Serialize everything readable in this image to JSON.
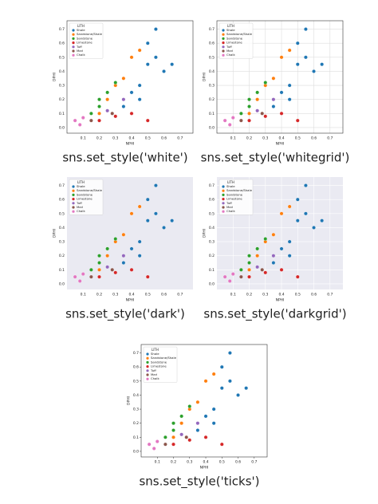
{
  "chart_data": [
    {
      "type": "scatter",
      "caption": "sns.set_style('white')",
      "x_label": "NPHI",
      "y_label": "DPHI",
      "legend_title": "LITH",
      "legend": "upper left",
      "grid": false,
      "background": "#ffffff",
      "spines": true,
      "tick_marks": false,
      "xlim": [
        0,
        0.78
      ],
      "ylim": [
        -0.04,
        0.76
      ],
      "xticks": [
        0.1,
        0.2,
        0.3,
        0.4,
        0.5,
        0.6,
        0.7
      ],
      "yticks": [
        {
          "value": 0,
          "label": "0.0"
        },
        0.1,
        0.2,
        0.3,
        0.4,
        0.5,
        0.6,
        0.7
      ],
      "series": [
        {
          "name": "Shale",
          "color": "#1f77b4",
          "x": [
            0.35,
            0.4,
            0.45,
            0.5,
            0.55,
            0.6,
            0.5,
            0.55,
            0.65,
            0.45
          ],
          "values": [
            0.15,
            0.25,
            0.3,
            0.45,
            0.5,
            0.4,
            0.6,
            0.7,
            0.45,
            0.2
          ]
        },
        {
          "name": "Sandstone/Shale",
          "color": "#ff7f0e",
          "x": [
            0.2,
            0.25,
            0.3,
            0.35,
            0.4,
            0.45
          ],
          "values": [
            0.1,
            0.2,
            0.3,
            0.35,
            0.5,
            0.55
          ]
        },
        {
          "name": "Sandstone",
          "color": "#2ca02c",
          "x": [
            0.15,
            0.2,
            0.25,
            0.3,
            0.2
          ],
          "values": [
            0.1,
            0.2,
            0.25,
            0.32,
            0.15
          ]
        },
        {
          "name": "Limestone",
          "color": "#d62728",
          "x": [
            0.2,
            0.3,
            0.4,
            0.5
          ],
          "values": [
            0.05,
            0.08,
            0.1,
            0.05
          ]
        },
        {
          "name": "Tuff",
          "color": "#9467bd",
          "x": [
            0.25,
            0.35
          ],
          "values": [
            0.12,
            0.2
          ]
        },
        {
          "name": "Marl",
          "color": "#8c564b",
          "x": [
            0.15,
            0.28
          ],
          "values": [
            0.05,
            0.1
          ]
        },
        {
          "name": "Chalk",
          "color": "#e377c2",
          "x": [
            0.05,
            0.08,
            0.1
          ],
          "values": [
            0.05,
            0.02,
            0.07
          ]
        }
      ]
    },
    {
      "type": "scatter",
      "caption": "sns.set_style('whitegrid')",
      "x_label": "NPHI",
      "y_label": "DPHI",
      "legend_title": "LITH",
      "legend": "upper left",
      "grid": true,
      "background": "#ffffff",
      "spines": true,
      "tick_marks": false,
      "xlim": [
        0,
        0.78
      ],
      "ylim": [
        -0.04,
        0.76
      ],
      "xticks": [
        0.1,
        0.2,
        0.3,
        0.4,
        0.5,
        0.6,
        0.7
      ],
      "yticks": [
        {
          "value": 0,
          "label": "0.0"
        },
        0.1,
        0.2,
        0.3,
        0.4,
        0.5,
        0.6,
        0.7
      ],
      "series": [
        {
          "name": "Shale",
          "color": "#1f77b4",
          "x": [
            0.35,
            0.4,
            0.45,
            0.5,
            0.55,
            0.6,
            0.5,
            0.55,
            0.65,
            0.45
          ],
          "values": [
            0.15,
            0.25,
            0.3,
            0.45,
            0.5,
            0.4,
            0.6,
            0.7,
            0.45,
            0.2
          ]
        },
        {
          "name": "Sandstone/Shale",
          "color": "#ff7f0e",
          "x": [
            0.2,
            0.25,
            0.3,
            0.35,
            0.4,
            0.45
          ],
          "values": [
            0.1,
            0.2,
            0.3,
            0.35,
            0.5,
            0.55
          ]
        },
        {
          "name": "Sandstone",
          "color": "#2ca02c",
          "x": [
            0.15,
            0.2,
            0.25,
            0.3,
            0.2
          ],
          "values": [
            0.1,
            0.2,
            0.25,
            0.32,
            0.15
          ]
        },
        {
          "name": "Limestone",
          "color": "#d62728",
          "x": [
            0.2,
            0.3,
            0.4,
            0.5
          ],
          "values": [
            0.05,
            0.08,
            0.1,
            0.05
          ]
        },
        {
          "name": "Tuff",
          "color": "#9467bd",
          "x": [
            0.25,
            0.35
          ],
          "values": [
            0.12,
            0.2
          ]
        },
        {
          "name": "Marl",
          "color": "#8c564b",
          "x": [
            0.15,
            0.28
          ],
          "values": [
            0.05,
            0.1
          ]
        },
        {
          "name": "Chalk",
          "color": "#e377c2",
          "x": [
            0.05,
            0.08,
            0.1
          ],
          "values": [
            0.05,
            0.02,
            0.07
          ]
        }
      ]
    },
    {
      "type": "scatter",
      "caption": "sns.set_style('dark')",
      "x_label": "NPHI",
      "y_label": "DPHI",
      "legend_title": "LITH",
      "legend": "upper left",
      "grid": false,
      "background": "#eaeaf2",
      "spines": false,
      "tick_marks": false,
      "xlim": [
        0,
        0.78
      ],
      "ylim": [
        -0.04,
        0.76
      ],
      "xticks": [
        0.1,
        0.2,
        0.3,
        0.4,
        0.5,
        0.6,
        0.7
      ],
      "yticks": [
        {
          "value": 0,
          "label": "0.0"
        },
        0.1,
        0.2,
        0.3,
        0.4,
        0.5,
        0.6,
        0.7
      ],
      "series": [
        {
          "name": "Shale",
          "color": "#1f77b4",
          "x": [
            0.35,
            0.4,
            0.45,
            0.5,
            0.55,
            0.6,
            0.5,
            0.55,
            0.65,
            0.45
          ],
          "values": [
            0.15,
            0.25,
            0.3,
            0.45,
            0.5,
            0.4,
            0.6,
            0.7,
            0.45,
            0.2
          ]
        },
        {
          "name": "Sandstone/Shale",
          "color": "#ff7f0e",
          "x": [
            0.2,
            0.25,
            0.3,
            0.35,
            0.4,
            0.45
          ],
          "values": [
            0.1,
            0.2,
            0.3,
            0.35,
            0.5,
            0.55
          ]
        },
        {
          "name": "Sandstone",
          "color": "#2ca02c",
          "x": [
            0.15,
            0.2,
            0.25,
            0.3,
            0.2
          ],
          "values": [
            0.1,
            0.2,
            0.25,
            0.32,
            0.15
          ]
        },
        {
          "name": "Limestone",
          "color": "#d62728",
          "x": [
            0.2,
            0.3,
            0.4,
            0.5
          ],
          "values": [
            0.05,
            0.08,
            0.1,
            0.05
          ]
        },
        {
          "name": "Tuff",
          "color": "#9467bd",
          "x": [
            0.25,
            0.35
          ],
          "values": [
            0.12,
            0.2
          ]
        },
        {
          "name": "Marl",
          "color": "#8c564b",
          "x": [
            0.15,
            0.28
          ],
          "values": [
            0.05,
            0.1
          ]
        },
        {
          "name": "Chalk",
          "color": "#e377c2",
          "x": [
            0.05,
            0.08,
            0.1
          ],
          "values": [
            0.05,
            0.02,
            0.07
          ]
        }
      ]
    },
    {
      "type": "scatter",
      "caption": "sns.set_style('darkgrid')",
      "x_label": "NPHI",
      "y_label": "DPHI",
      "legend_title": "LITH",
      "legend": "upper left",
      "grid": true,
      "background": "#eaeaf2",
      "spines": false,
      "tick_marks": false,
      "xlim": [
        0,
        0.78
      ],
      "ylim": [
        -0.04,
        0.76
      ],
      "xticks": [
        0.1,
        0.2,
        0.3,
        0.4,
        0.5,
        0.6,
        0.7
      ],
      "yticks": [
        {
          "value": 0,
          "label": "0.0"
        },
        0.1,
        0.2,
        0.3,
        0.4,
        0.5,
        0.6,
        0.7
      ],
      "series": [
        {
          "name": "Shale",
          "color": "#1f77b4",
          "x": [
            0.35,
            0.4,
            0.45,
            0.5,
            0.55,
            0.6,
            0.5,
            0.55,
            0.65,
            0.45
          ],
          "values": [
            0.15,
            0.25,
            0.3,
            0.45,
            0.5,
            0.4,
            0.6,
            0.7,
            0.45,
            0.2
          ]
        },
        {
          "name": "Sandstone/Shale",
          "color": "#ff7f0e",
          "x": [
            0.2,
            0.25,
            0.3,
            0.35,
            0.4,
            0.45
          ],
          "values": [
            0.1,
            0.2,
            0.3,
            0.35,
            0.5,
            0.55
          ]
        },
        {
          "name": "Sandstone",
          "color": "#2ca02c",
          "x": [
            0.15,
            0.2,
            0.25,
            0.3,
            0.2
          ],
          "values": [
            0.1,
            0.2,
            0.25,
            0.32,
            0.15
          ]
        },
        {
          "name": "Limestone",
          "color": "#d62728",
          "x": [
            0.2,
            0.3,
            0.4,
            0.5
          ],
          "values": [
            0.05,
            0.08,
            0.1,
            0.05
          ]
        },
        {
          "name": "Tuff",
          "color": "#9467bd",
          "x": [
            0.25,
            0.35
          ],
          "values": [
            0.12,
            0.2
          ]
        },
        {
          "name": "Marl",
          "color": "#8c564b",
          "x": [
            0.15,
            0.28
          ],
          "values": [
            0.05,
            0.1
          ]
        },
        {
          "name": "Chalk",
          "color": "#e377c2",
          "x": [
            0.05,
            0.08,
            0.1
          ],
          "values": [
            0.05,
            0.02,
            0.07
          ]
        }
      ]
    },
    {
      "type": "scatter",
      "caption": "sns.set_style('ticks')",
      "x_label": "NPHI",
      "y_label": "DPHI",
      "legend_title": "LITH",
      "legend": "upper left",
      "grid": false,
      "background": "#ffffff",
      "spines": true,
      "tick_marks": true,
      "xlim": [
        0,
        0.78
      ],
      "ylim": [
        -0.04,
        0.76
      ],
      "xticks": [
        0.1,
        0.2,
        0.3,
        0.4,
        0.5,
        0.6,
        0.7
      ],
      "yticks": [
        {
          "value": 0,
          "label": "0.0"
        },
        0.1,
        0.2,
        0.3,
        0.4,
        0.5,
        0.6,
        0.7
      ],
      "series": [
        {
          "name": "Shale",
          "color": "#1f77b4",
          "x": [
            0.35,
            0.4,
            0.45,
            0.5,
            0.55,
            0.6,
            0.5,
            0.55,
            0.65,
            0.45
          ],
          "values": [
            0.15,
            0.25,
            0.3,
            0.45,
            0.5,
            0.4,
            0.6,
            0.7,
            0.45,
            0.2
          ]
        },
        {
          "name": "Sandstone/Shale",
          "color": "#ff7f0e",
          "x": [
            0.2,
            0.25,
            0.3,
            0.35,
            0.4,
            0.45
          ],
          "values": [
            0.1,
            0.2,
            0.3,
            0.35,
            0.5,
            0.55
          ]
        },
        {
          "name": "Sandstone",
          "color": "#2ca02c",
          "x": [
            0.15,
            0.2,
            0.25,
            0.3,
            0.2
          ],
          "values": [
            0.1,
            0.2,
            0.25,
            0.32,
            0.15
          ]
        },
        {
          "name": "Limestone",
          "color": "#d62728",
          "x": [
            0.2,
            0.3,
            0.4,
            0.5
          ],
          "values": [
            0.05,
            0.08,
            0.1,
            0.05
          ]
        },
        {
          "name": "Tuff",
          "color": "#9467bd",
          "x": [
            0.25,
            0.35
          ],
          "values": [
            0.12,
            0.2
          ]
        },
        {
          "name": "Marl",
          "color": "#8c564b",
          "x": [
            0.15,
            0.28
          ],
          "values": [
            0.05,
            0.1
          ]
        },
        {
          "name": "Chalk",
          "color": "#e377c2",
          "x": [
            0.05,
            0.08,
            0.1
          ],
          "values": [
            0.05,
            0.02,
            0.07
          ]
        }
      ]
    }
  ]
}
